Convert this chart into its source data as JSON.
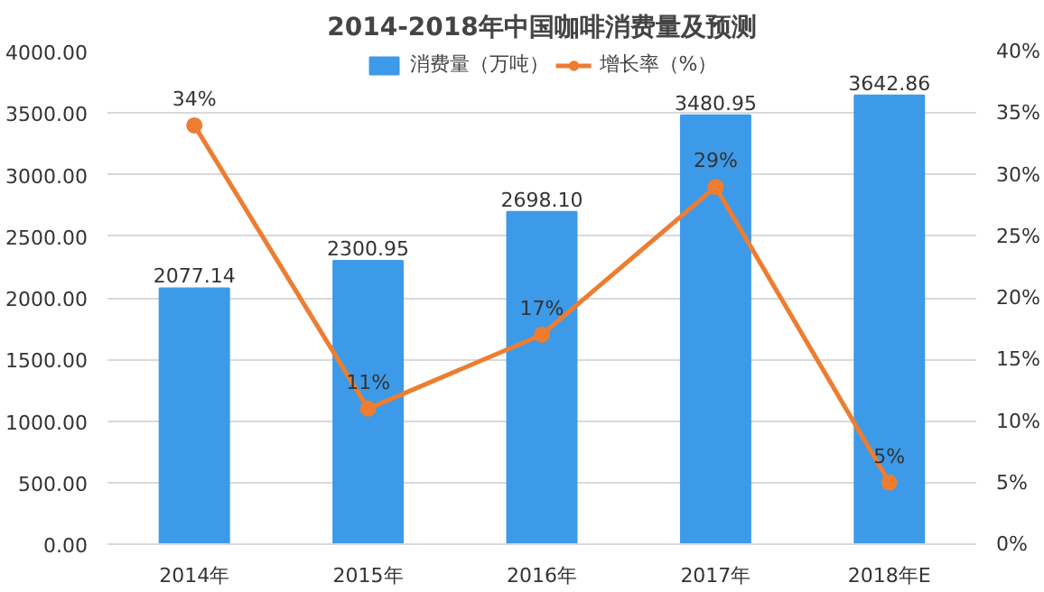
{
  "chart_data": {
    "type": "bar",
    "title": "2014-2018年中国咖啡消费量及预测",
    "categories": [
      "2014年",
      "2015年",
      "2016年",
      "2017年",
      "2018年E"
    ],
    "series": [
      {
        "name": "消费量（万吨）",
        "color": "#3d9ae8",
        "values": [
          2077.14,
          2300.95,
          2698.1,
          3480.95,
          3642.86
        ],
        "value_labels": [
          "2077.14",
          "2300.95",
          "2698.10",
          "3480.95",
          "3642.86"
        ]
      },
      {
        "name": "增长率（%）",
        "type": "line",
        "axis": "y2",
        "color": "#ed7d31",
        "marker": "circle",
        "values": [
          34,
          11,
          17,
          29,
          5
        ],
        "value_labels": [
          "34%",
          "11%",
          "17%",
          "29%",
          "5%"
        ]
      }
    ],
    "ylim": [
      0,
      4000
    ],
    "yticks": [
      {
        "value": 0,
        "label": "0.00"
      },
      {
        "value": 500,
        "label": "500.00"
      },
      {
        "value": 1000,
        "label": "1000.00"
      },
      {
        "value": 1500,
        "label": "1500.00"
      },
      {
        "value": 2000,
        "label": "2000.00"
      },
      {
        "value": 2500,
        "label": "2500.00"
      },
      {
        "value": 3000,
        "label": "3000.00"
      },
      {
        "value": 3500,
        "label": "3500.00"
      },
      {
        "value": 4000,
        "label": "4000.00"
      }
    ],
    "y2lim": [
      0,
      40
    ],
    "y2ticks": [
      {
        "value": 0,
        "label": "0%"
      },
      {
        "value": 5,
        "label": "5%"
      },
      {
        "value": 10,
        "label": "10%"
      },
      {
        "value": 15,
        "label": "15%"
      },
      {
        "value": 20,
        "label": "20%"
      },
      {
        "value": 25,
        "label": "25%"
      },
      {
        "value": 30,
        "label": "30%"
      },
      {
        "value": 35,
        "label": "35%"
      },
      {
        "value": 40,
        "label": "40%"
      }
    ],
    "grid": "y",
    "legend": "top"
  }
}
